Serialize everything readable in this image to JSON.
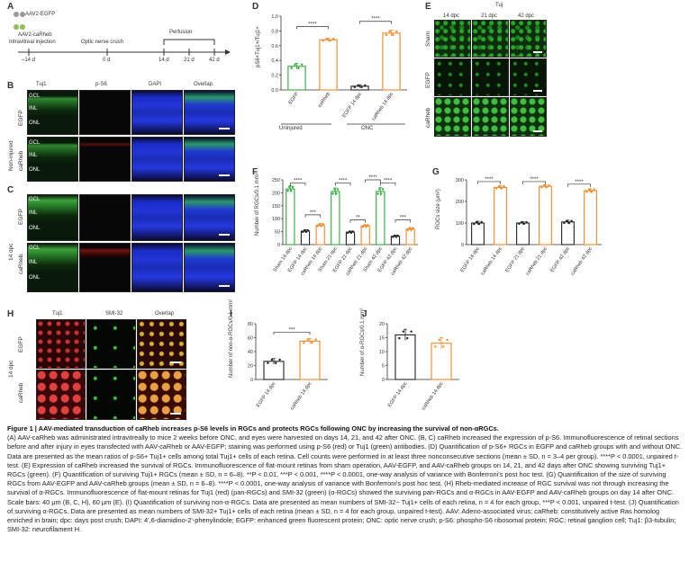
{
  "panelA": {
    "label": "A",
    "aav_egfp": "AAV2-EGFP",
    "aav_carheb": "AAV2-caRheb",
    "injection": "Intravitreal injection",
    "onc": "Optic nerve crush",
    "perfusion": "Perfusion",
    "timepoints": [
      "–14 d",
      "0 d",
      "14 d",
      "21 d",
      "42 d"
    ]
  },
  "panelB": {
    "label": "B",
    "cols": [
      "Tuj1",
      "p-S6",
      "DAPI",
      "Overlap"
    ],
    "group": "Non-injured",
    "rows": [
      "EGFP",
      "caRheb"
    ],
    "layers": [
      "GCL",
      "INL",
      "ONL"
    ]
  },
  "panelC": {
    "label": "C",
    "group": "14 dpc",
    "rows": [
      "EGFP",
      "caRheb"
    ],
    "layers": [
      "GCL",
      "INL",
      "ONL"
    ]
  },
  "panelD": {
    "label": "D",
    "ylabel": "pS6+Tuj1+/Tuj1+",
    "bars": [
      "EGFP",
      "caRheb",
      "EGFP 14 dpc",
      "caRheb 14 dpc"
    ],
    "groups": [
      "Uninjured",
      "ONC"
    ],
    "sig": [
      "****",
      "****"
    ],
    "yticks": [
      "0.0",
      "0.2",
      "0.4",
      "0.6",
      "0.8",
      "1.0"
    ]
  },
  "panelE": {
    "label": "E",
    "title": "Tuj",
    "cols": [
      "14 dpc",
      "21 dpc",
      "42 dpc"
    ],
    "rows": [
      "Sham",
      "EGFP",
      "caRheb"
    ]
  },
  "panelF": {
    "label": "F",
    "ylabel": "Number of RGCs/0.1 mm²",
    "yticks": [
      "0",
      "50",
      "100",
      "150",
      "200",
      "250"
    ],
    "cats": [
      "Sham 14 dpc",
      "EGFP 14 dpc",
      "caRheb 14 dpc",
      "Sham 21 dpc",
      "EGFP 21 dpc",
      "caRheb 21 dpc",
      "Sham 42 dpc",
      "EGFP 42 dpc",
      "caRheb 42 dpc"
    ],
    "sig": [
      "****",
      "****",
      "***",
      "****",
      "****",
      "**",
      "****",
      "****",
      "***"
    ]
  },
  "panelG": {
    "label": "G",
    "ylabel": "RGCs size (μm²)",
    "yticks": [
      "0",
      "100",
      "200",
      "300"
    ],
    "cats": [
      "EGFP 14 dpc",
      "caRheb 14 dpc",
      "EGFP 21 dpc",
      "caRheb 21 dpc",
      "EGFP 42 dpc",
      "caRheb 42 dpc"
    ],
    "sig": [
      "****",
      "****",
      "****"
    ]
  },
  "panelH": {
    "label": "H",
    "cols": [
      "Tuj1",
      "SMI-32",
      "Overlap"
    ],
    "group": "14 dpc",
    "rows": [
      "EGFP",
      "caRheb"
    ]
  },
  "panelI": {
    "label": "I",
    "ylabel": "Number of non-α-RGCs/0.1 mm²",
    "yticks": [
      "0",
      "20",
      "40",
      "60",
      "80"
    ],
    "cats": [
      "EGFP 14 dpc",
      "caRheb 14 dpc"
    ],
    "sig": "***"
  },
  "panelJ": {
    "label": "J",
    "ylabel": "Number of α-RGCs/0.1 mm²",
    "yticks": [
      "0",
      "5",
      "10",
      "15",
      "20"
    ],
    "cats": [
      "EGFP 14 dpc",
      "caRheb 14 dpc"
    ]
  },
  "colors": {
    "egfp": "#2eaa3a",
    "carheb": "#f08a24",
    "black": "#222222"
  },
  "chart_data": [
    {
      "type": "bar",
      "id": "D",
      "categories": [
        "EGFP",
        "caRheb",
        "EGFP 14 dpc",
        "caRheb 14 dpc"
      ],
      "values": [
        0.32,
        0.68,
        0.05,
        0.77
      ],
      "errors": [
        0.04,
        0.02,
        0.02,
        0.04
      ],
      "ylabel": "pS6+Tuj1+/Tuj1+",
      "ylim": [
        0,
        1.0
      ]
    },
    {
      "type": "bar",
      "id": "F",
      "categories": [
        "Sham 14 dpc",
        "EGFP 14 dpc",
        "caRheb 14 dpc",
        "Sham 21 dpc",
        "EGFP 21 dpc",
        "caRheb 21 dpc",
        "Sham 42 dpc",
        "EGFP 42 dpc",
        "caRheb 42 dpc"
      ],
      "values": [
        215,
        52,
        75,
        205,
        48,
        72,
        205,
        32,
        60
      ],
      "errors": [
        12,
        5,
        6,
        14,
        4,
        5,
        15,
        4,
        6
      ],
      "ylabel": "Number of RGCs/0.1 mm²",
      "ylim": [
        0,
        250
      ]
    },
    {
      "type": "bar",
      "id": "G",
      "categories": [
        "EGFP 14 dpc",
        "caRheb 14 dpc",
        "EGFP 21 dpc",
        "caRheb 21 dpc",
        "EGFP 42 dpc",
        "caRheb 42 dpc"
      ],
      "values": [
        100,
        265,
        100,
        270,
        105,
        250
      ],
      "errors": [
        8,
        8,
        6,
        7,
        8,
        9
      ],
      "ylabel": "RGCs size (μm²)",
      "ylim": [
        0,
        300
      ]
    },
    {
      "type": "bar",
      "id": "I",
      "categories": [
        "EGFP 14 dpc",
        "caRheb 14 dpc"
      ],
      "values": [
        26,
        55
      ],
      "errors": [
        4,
        4
      ],
      "ylabel": "Number of non-α-RGCs/0.1 mm²",
      "ylim": [
        0,
        80
      ]
    },
    {
      "type": "bar",
      "id": "J",
      "categories": [
        "EGFP 14 dpc",
        "caRheb 14 dpc"
      ],
      "values": [
        16,
        13
      ],
      "errors": [
        2,
        2
      ],
      "ylabel": "Number of α-RGCs/0.1 mm²",
      "ylim": [
        0,
        20
      ]
    }
  ],
  "caption": {
    "title": "Figure 1 | AAV-mediated transduction of caRheb increases p-S6 levels in RGCs and protects RGCs following ONC by increasing the survival of non-αRGCs.",
    "body": "(A) AAV-caRheb was administrated intravitreally to mice 2 weeks before ONC, and eyes were harvested on days 14, 21, and 42 after ONC. (B, C) caRheb increased the expression of p-S6. Immunofluorescence of retinal sections before and after injury in eyes transfected with AAV-caRheb or AAV-EGFP; staining was performed using p-S6 (red) or Tuj1 (green) antibodies. (D) Quantification of p-S6+ RGCs in EGFP and caRheb groups with and without ONC. Data are presented as the mean ratios of p-S6+ Tuj1+ cells among total Tuj1+ cells of each retina. Cell counts were performed in at least three nonconsecutive sections (mean ± SD, n = 3–4 per group). ****P < 0.0001, unpaired t-test. (E) Expression of caRheb increased the survival of RGCs. Immunofluorescence of flat-mount retinas from sham operation, AAV-EGFP, and AAV-caRheb groups on 14, 21, and 42 days after ONC showing surviving Tuj1+ RGCs (green). (F) Quantification of surviving Tuj1+ RGCs (mean ± SD, n = 6–8). **P < 0.01, ***P < 0.001, ****P < 0.0001, one-way analysis of variance with Bonferroni's post hoc test. (G) Quantification of the size of surviving RGCs from AAV-EGFP and AAV-caRheb groups (mean ± SD, n = 6–8). ****P < 0.0001, one-way analysis of variance with Bonferroni's post hoc test. (H) Rheb-mediated increase of RGC survival was not through increasing the survival of α-RGCs. Immunofluorescence of flat-mount retinas for Tuj1 (red) (pan-RGCs) and SMI-32 (green) (α-RGCs) showed the surviving pan-RGCs and α-RGCs in AAV-EGFP and AAV-caRheb groups on day 14 after ONC. Scale bars: 40 μm (B, C, H), 60 μm (E). (I) Quantification of surviving non-α-RGCs. Data are presented as mean numbers of SMI-32− Tuj1+ cells of each retina, n = 4 for each group, ***P < 0.001, unpaired t-test. (J) Quantification of surviving α-RGCs. Data are presented as mean numbers of SMI-32+ Tuj1+ cells of each retina (mean ± SD, n = 4 for each group, unpaired t-test). AAV: Adeno-associated virus; caRheb: constitutively active Ras homolog enriched in brain; dpc: days post crush; DAPI: 4',6-diamidino-2'-phenylindole; EGFP: enhanced green fluorescent protein; ONC: optic nerve crush; p-S6: phospho-S6 ribosomal protein; RGC: retinal ganglion cell; Tuj1: β3-tubulin; SMI-32: neurofilament H."
  }
}
